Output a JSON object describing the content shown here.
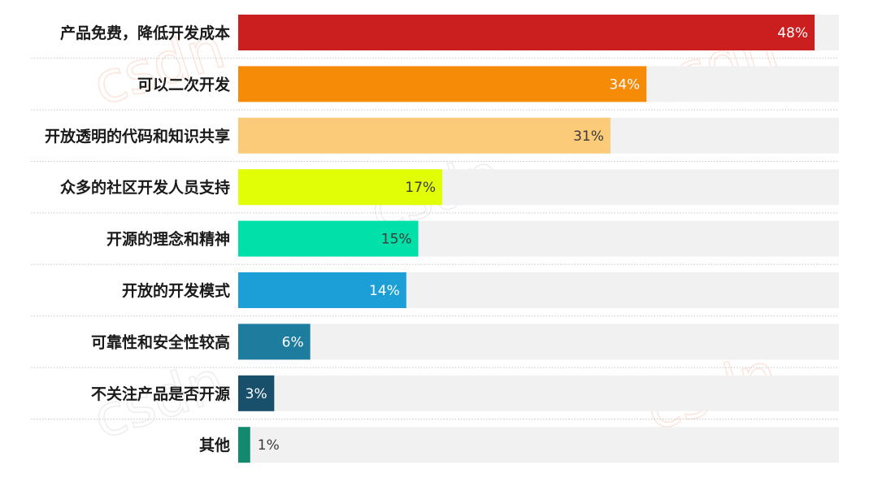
{
  "chart_data": {
    "type": "bar",
    "orientation": "horizontal",
    "categories": [
      "产品免费，降低开发成本",
      "可以二次开发",
      "开放透明的代码和知识共享",
      "众多的社区开发人员支持",
      "开源的理念和精神",
      "开放的开发模式",
      "可靠性和安全性较高",
      "不关注产品是否开源",
      "其他"
    ],
    "values": [
      48,
      34,
      31,
      17,
      15,
      14,
      6,
      3,
      1
    ],
    "value_labels": [
      "48%",
      "34%",
      "31%",
      "17%",
      "15%",
      "14%",
      "6%",
      "3%",
      "1%"
    ],
    "bar_colors": [
      "#cb1e1e",
      "#f68b07",
      "#fccb7a",
      "#e1fe07",
      "#02e0a9",
      "#1b9fd6",
      "#1e7d9e",
      "#18506b",
      "#138a6e"
    ],
    "label_colors": [
      "#ffffff",
      "#ffffff",
      "#3a3a3a",
      "#3a3a3a",
      "#3a3a3a",
      "#ffffff",
      "#ffffff",
      "#ffffff",
      "#3a3a3a"
    ],
    "track_color": "#f1f1f1",
    "xlim": [
      0,
      50
    ],
    "grid": false,
    "legend": "none"
  },
  "watermark": {
    "text": "csdn"
  }
}
